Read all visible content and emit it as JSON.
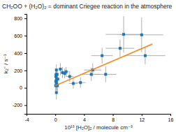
{
  "chart_data": {
    "type": "scatter",
    "title": "CH₂OO + (H₂O)₂ = dominant Criegee reaction in the atmosphere",
    "xlabel": "10¹³ [H₂O]₂ / molecule cm⁻³",
    "ylabel": "k₂'' / s⁻¹",
    "xlim": [
      -4,
      16
    ],
    "ylim": [
      -300,
      850
    ],
    "xticks": [
      -4,
      0,
      4,
      8,
      12,
      16
    ],
    "yticks": [
      -200,
      0,
      200,
      400,
      600,
      800
    ],
    "grid": false,
    "series": [
      {
        "type": "scatter",
        "marker": "square",
        "x": [
          0.05,
          0.07,
          0.08,
          0.1,
          0.12,
          0.13,
          0.15,
          0.15,
          0.15,
          0.18,
          0.2,
          0.25,
          0.3,
          0.35,
          0.7,
          1.0,
          1.3,
          1.5,
          2.0,
          2.5,
          3.5,
          5.0,
          5.2,
          6.5,
          7.0,
          9.0,
          9.5,
          12.0,
          12.5
        ],
        "values": [
          25,
          75,
          130,
          145,
          155,
          60,
          85,
          205,
          -55,
          105,
          40,
          155,
          25,
          100,
          215,
          175,
          165,
          185,
          130,
          50,
          60,
          155,
          205,
          370,
          155,
          455,
          615,
          610,
          370
        ],
        "xerr": [
          0.08,
          0.09,
          0.09,
          0.1,
          0.1,
          0.09,
          0.1,
          0.1,
          0.1,
          0.1,
          0.12,
          0.12,
          0.12,
          0.12,
          0.25,
          0.3,
          0.35,
          0.4,
          0.5,
          0.6,
          0.7,
          1.2,
          1.2,
          1.5,
          1.5,
          2.0,
          2.5,
          3.0,
          2.8
        ],
        "yerr": [
          60,
          60,
          55,
          50,
          50,
          65,
          65,
          65,
          80,
          65,
          65,
          55,
          65,
          65,
          70,
          65,
          55,
          55,
          60,
          60,
          60,
          75,
          75,
          90,
          90,
          100,
          210,
          200,
          100
        ]
      },
      {
        "type": "line",
        "line_style": "solid",
        "x": [
          0,
          13.5
        ],
        "values": [
          25,
          504.25
        ]
      }
    ]
  }
}
